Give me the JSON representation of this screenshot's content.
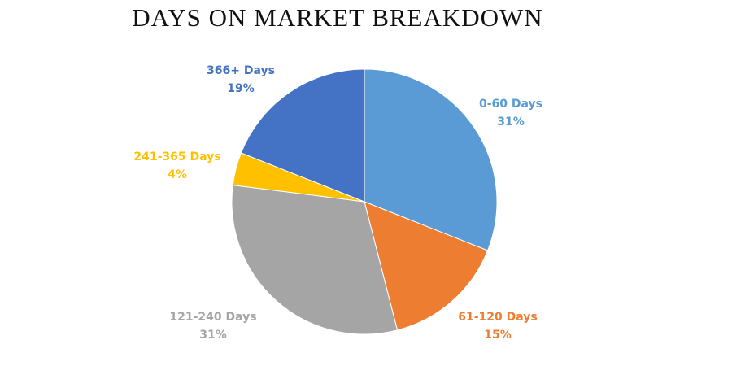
{
  "chart_data": {
    "type": "pie",
    "title": "DAYS ON MARKET BREAKDOWN",
    "categories": [
      "0-60 Days",
      "61-120 Days",
      "121-240 Days",
      "241-365 Days",
      "366+ Days"
    ],
    "values": [
      31,
      15,
      31,
      4,
      19
    ],
    "value_labels": [
      "31%",
      "15%",
      "31%",
      "4%",
      "19%"
    ],
    "colors": [
      "#5b9bd5",
      "#ed7d31",
      "#a5a5a5",
      "#ffc000",
      "#4472c4"
    ]
  }
}
